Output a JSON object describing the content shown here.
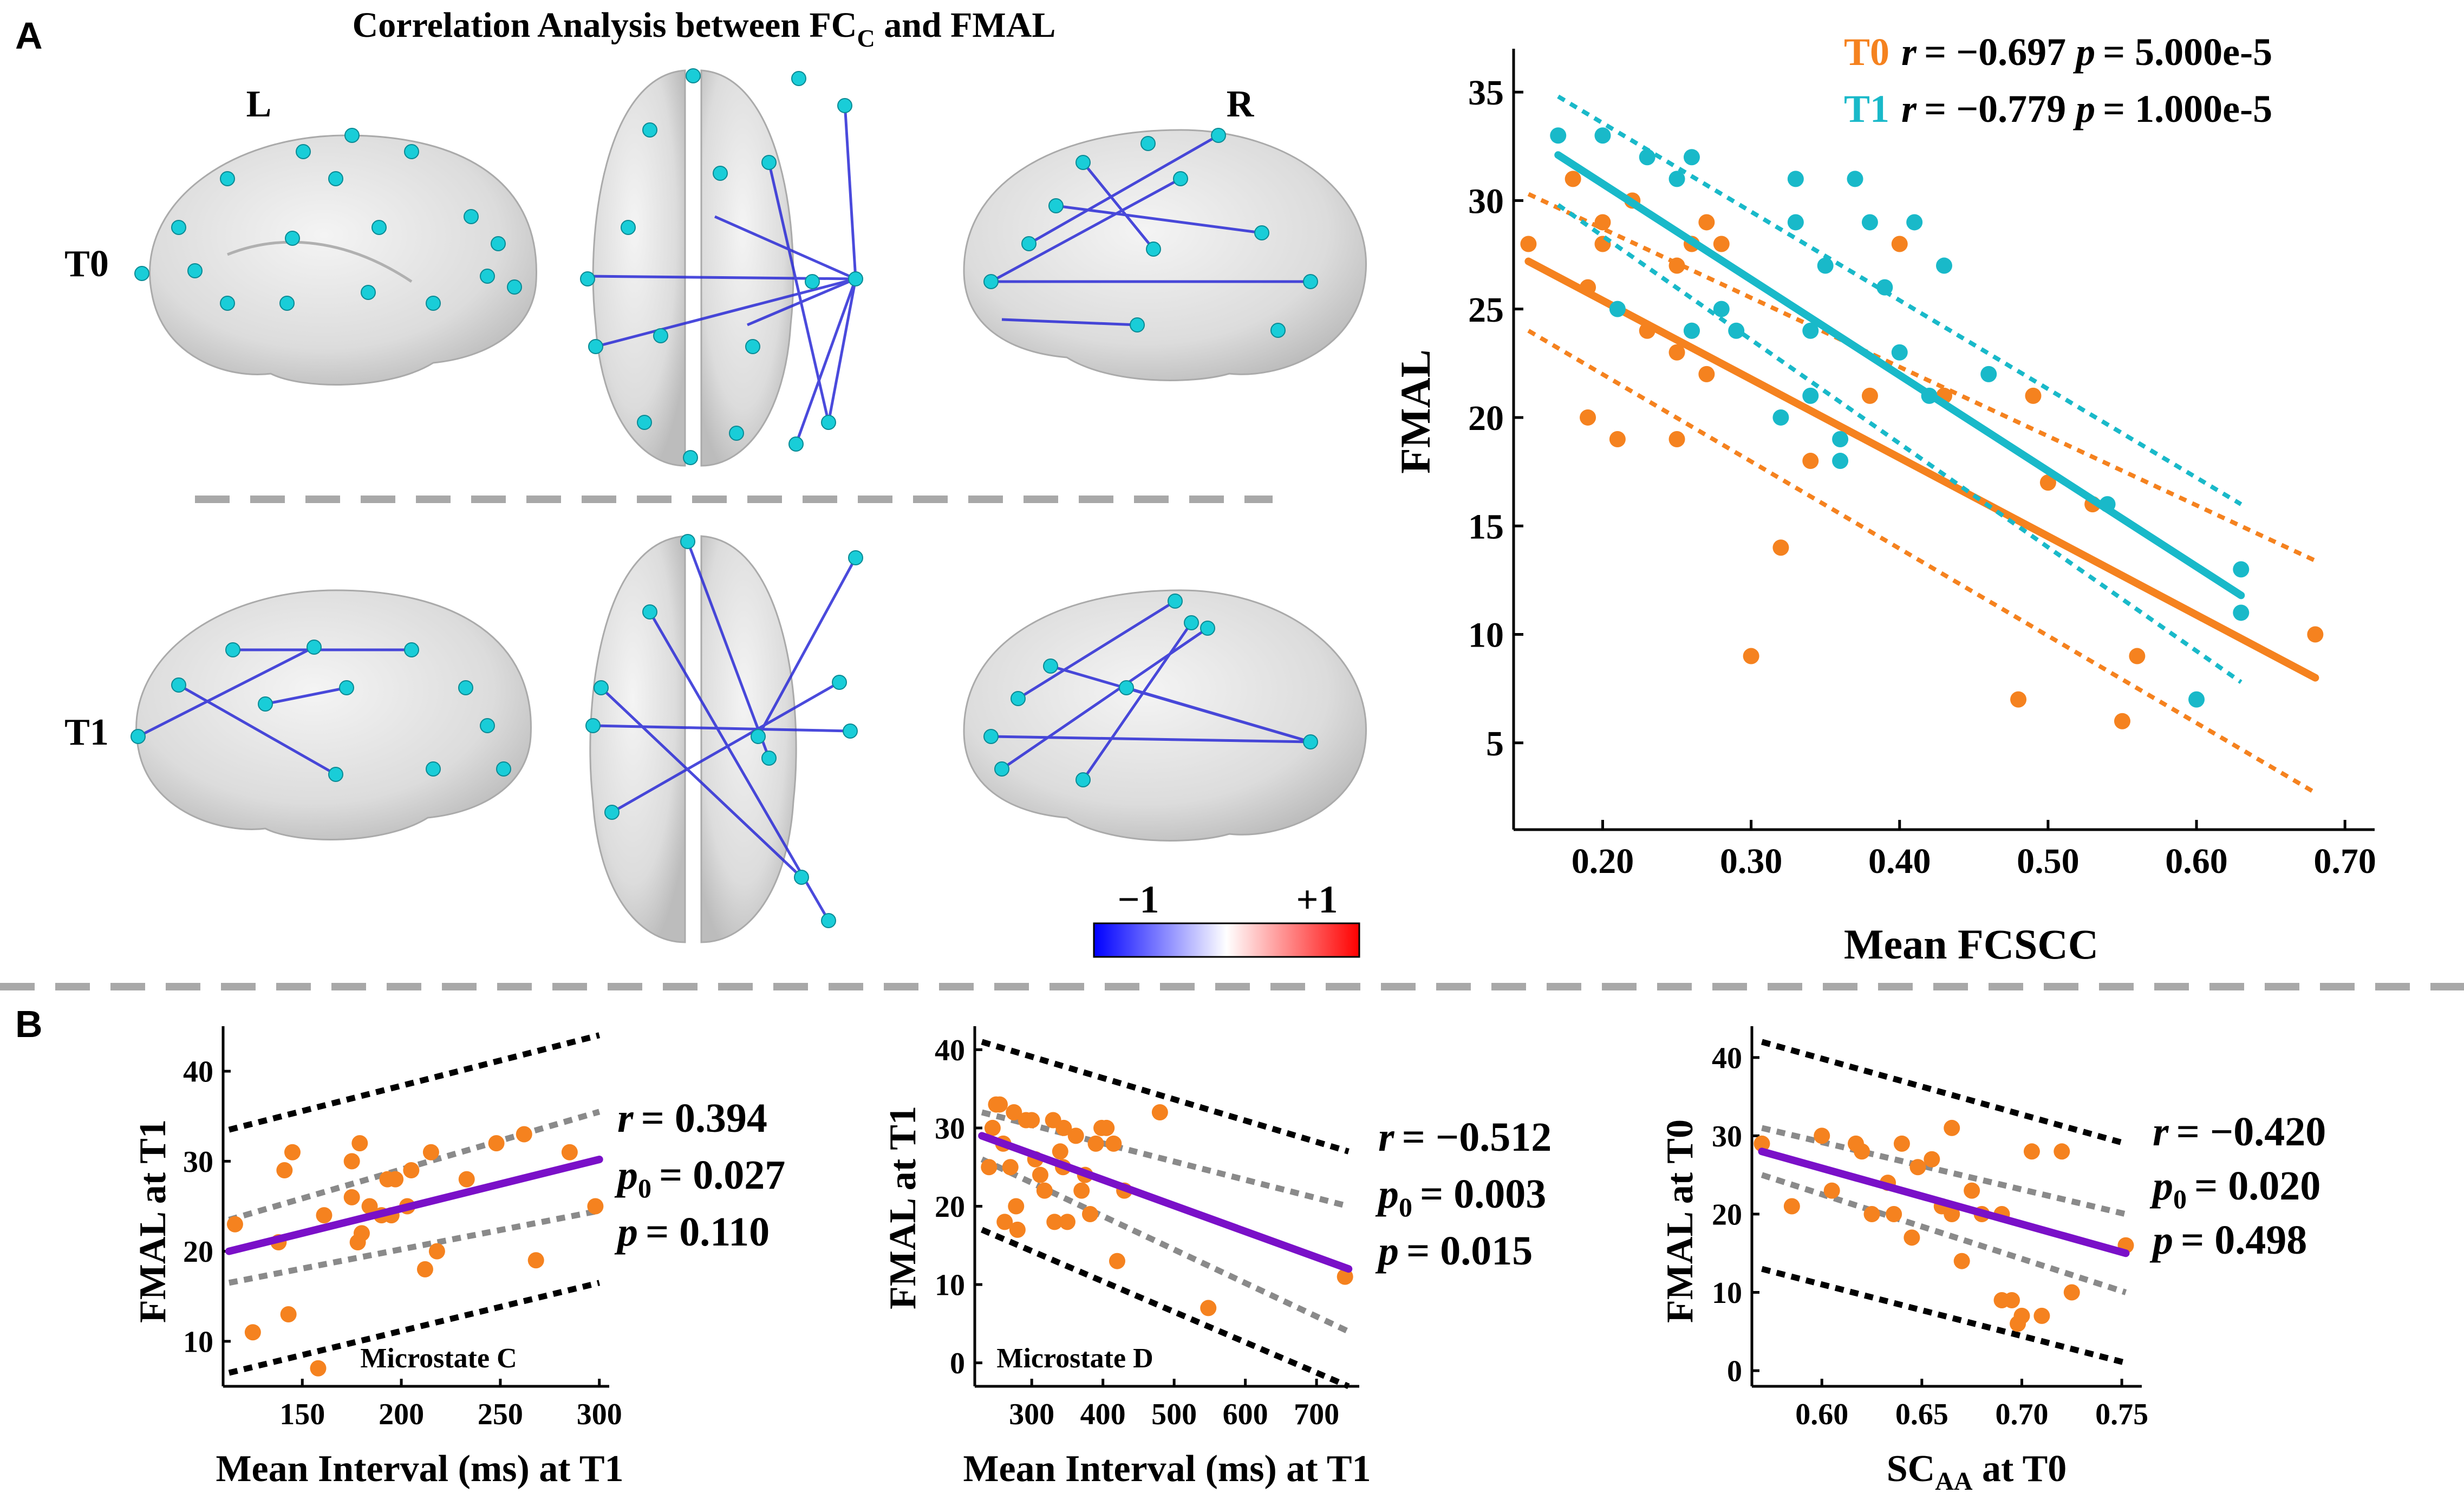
{
  "panel_a": {
    "label": "A",
    "title_main": "Correlation Analysis between FC",
    "title_sub": "C",
    "title_end": " and FMAL",
    "left_label": "L",
    "right_label": "R",
    "row_t0": "T0",
    "row_t1": "T1",
    "colorbar": {
      "min_label": "−1",
      "max_label": "+1",
      "colors": [
        "#0000ff",
        "#ffffff",
        "#ff0000"
      ]
    }
  },
  "panel_b_label": "B",
  "chart_data": [
    {
      "type": "scatter",
      "panel": "A-right",
      "title": "",
      "xlabel": "Mean FCSCC",
      "ylabel": "FMAL",
      "xlim": [
        0.14,
        0.72
      ],
      "ylim": [
        1,
        37
      ],
      "xticks": [
        0.2,
        0.3,
        0.4,
        0.5,
        0.6,
        0.7
      ],
      "xtick_labels": [
        "0.20",
        "0.30",
        "0.40",
        "0.50",
        "0.60",
        "0.70"
      ],
      "yticks": [
        5,
        10,
        15,
        20,
        25,
        30,
        35
      ],
      "ytick_labels": [
        "5",
        "10",
        "15",
        "20",
        "25",
        "30",
        "35"
      ],
      "series": [
        {
          "name": "T0",
          "color": "#f5821f",
          "stats": {
            "r_prefix": "r",
            "r": "= −0.697",
            "p_prefix": "p",
            "p": "= 5.000e-5"
          },
          "fit": {
            "x": [
              0.15,
              0.68
            ],
            "y": [
              27.2,
              8.0
            ]
          },
          "ci_upper": {
            "x": [
              0.15,
              0.68
            ],
            "y": [
              30.3,
              13.4
            ]
          },
          "ci_lower": {
            "x": [
              0.15,
              0.68
            ],
            "y": [
              24.0,
              2.7
            ]
          },
          "x": [
            0.15,
            0.18,
            0.19,
            0.19,
            0.2,
            0.2,
            0.21,
            0.22,
            0.23,
            0.25,
            0.25,
            0.25,
            0.26,
            0.26,
            0.27,
            0.27,
            0.28,
            0.3,
            0.32,
            0.34,
            0.38,
            0.4,
            0.43,
            0.48,
            0.49,
            0.5,
            0.53,
            0.55,
            0.56,
            0.68
          ],
          "y": [
            28,
            31,
            26,
            20,
            28,
            29,
            19,
            30,
            24,
            19,
            27,
            23,
            24,
            28,
            29,
            22,
            28,
            9,
            14,
            18,
            21,
            28,
            21,
            7,
            21,
            17,
            16,
            6,
            9,
            10
          ]
        },
        {
          "name": "T1",
          "color": "#19b9c9",
          "stats": {
            "r_prefix": "r",
            "r": "= −0.779",
            "p_prefix": "p",
            "p": "= 1.000e-5"
          },
          "fit": {
            "x": [
              0.17,
              0.63
            ],
            "y": [
              32.1,
              11.8
            ]
          },
          "ci_upper": {
            "x": [
              0.17,
              0.63
            ],
            "y": [
              34.8,
              16.0
            ]
          },
          "ci_lower": {
            "x": [
              0.17,
              0.63
            ],
            "y": [
              29.8,
              7.8
            ]
          },
          "x": [
            0.17,
            0.2,
            0.21,
            0.23,
            0.25,
            0.26,
            0.26,
            0.28,
            0.29,
            0.32,
            0.33,
            0.33,
            0.34,
            0.34,
            0.35,
            0.36,
            0.36,
            0.37,
            0.38,
            0.39,
            0.4,
            0.41,
            0.42,
            0.43,
            0.46,
            0.54,
            0.6,
            0.63,
            0.63
          ],
          "y": [
            33,
            33,
            25,
            32,
            31,
            32,
            24,
            25,
            24,
            20,
            29,
            31,
            24,
            21,
            27,
            19,
            18,
            31,
            29,
            26,
            23,
            29,
            21,
            27,
            22,
            16,
            7,
            13,
            11
          ]
        }
      ]
    },
    {
      "type": "scatter",
      "panel": "B-1",
      "annotation": "Microstate C",
      "xlabel": "Mean Interval (ms) at T1",
      "ylabel": "FMAL at T1",
      "xlim": [
        110,
        305
      ],
      "ylim": [
        5,
        45
      ],
      "xticks": [
        150,
        200,
        250,
        300
      ],
      "xtick_labels": [
        "150",
        "200",
        "250",
        "300"
      ],
      "yticks": [
        10,
        20,
        30,
        40
      ],
      "ytick_labels": [
        "10",
        "20",
        "30",
        "40"
      ],
      "stats": {
        "r_label": "r",
        "r": "= 0.394",
        "p0_label": "p",
        "p0_sub": "0",
        "p0": "= 0.027",
        "p_label": "p",
        "p": "= 0.110"
      },
      "point_color": "#f5821f",
      "fit_color": "#7a10c8",
      "fit": {
        "x": [
          113,
          300
        ],
        "y": [
          20,
          30.2
        ]
      },
      "ci_inner_upper": {
        "x": [
          113,
          300
        ],
        "y": [
          23.5,
          35.5
        ]
      },
      "ci_inner_lower": {
        "x": [
          113,
          300
        ],
        "y": [
          16.5,
          24.5
        ]
      },
      "ci_outer_upper": {
        "x": [
          113,
          300
        ],
        "y": [
          33.5,
          44
        ]
      },
      "ci_outer_lower": {
        "x": [
          113,
          300
        ],
        "y": [
          6.5,
          16.5
        ]
      },
      "x": [
        116,
        125,
        138,
        141,
        143,
        145,
        158,
        161,
        175,
        175,
        178,
        179,
        180,
        184,
        190,
        193,
        195,
        197,
        203,
        205,
        212,
        215,
        218,
        233,
        248,
        262,
        268,
        285,
        298
      ],
      "y": [
        23,
        11,
        21,
        29,
        13,
        31,
        7,
        24,
        30,
        26,
        21,
        32,
        22,
        25,
        24,
        28,
        24,
        28,
        25,
        29,
        18,
        31,
        20,
        28,
        32,
        33,
        19,
        31,
        25
      ]
    },
    {
      "type": "scatter",
      "panel": "B-2",
      "annotation": "Microstate D",
      "xlabel": "Mean Interval (ms) at T1",
      "ylabel": "FMAL at T1",
      "xlim": [
        220,
        760
      ],
      "ylim": [
        -3,
        43
      ],
      "xticks": [
        300,
        400,
        500,
        600,
        700
      ],
      "xtick_labels": [
        "300",
        "400",
        "500",
        "600",
        "700"
      ],
      "yticks": [
        0,
        10,
        20,
        30,
        40
      ],
      "ytick_labels": [
        "0",
        "10",
        "20",
        "30",
        "40"
      ],
      "stats": {
        "r_label": "r",
        "r": "= −0.512",
        "p0_label": "p",
        "p0_sub": "0",
        "p0": "= 0.003",
        "p_label": "p",
        "p": "= 0.015"
      },
      "point_color": "#f5821f",
      "fit_color": "#7a10c8",
      "fit": {
        "x": [
          230,
          745
        ],
        "y": [
          29,
          12
        ]
      },
      "ci_inner_upper": {
        "x": [
          230,
          745
        ],
        "y": [
          32,
          20
        ]
      },
      "ci_inner_lower": {
        "x": [
          230,
          745
        ],
        "y": [
          26,
          4
        ]
      },
      "ci_outer_upper": {
        "x": [
          230,
          745
        ],
        "y": [
          41,
          27
        ]
      },
      "ci_outer_lower": {
        "x": [
          230,
          745
        ],
        "y": [
          17,
          -3
        ]
      },
      "x": [
        240,
        245,
        250,
        255,
        260,
        262,
        270,
        275,
        278,
        280,
        292,
        300,
        305,
        312,
        318,
        330,
        332,
        340,
        344,
        345,
        350,
        362,
        370,
        375,
        382,
        390,
        398,
        405,
        415,
        420,
        430,
        480,
        548,
        740
      ],
      "y": [
        25,
        30,
        33,
        33,
        28,
        18,
        25,
        32,
        20,
        17,
        31,
        31,
        26,
        24,
        22,
        31,
        18,
        27,
        25,
        30,
        18,
        29,
        22,
        24,
        19,
        28,
        30,
        30,
        28,
        13,
        22,
        32,
        7,
        11
      ]
    },
    {
      "type": "scatter",
      "panel": "B-3",
      "xlabel_main": "SC",
      "xlabel_sub": "AA",
      "xlabel_end": " at T0",
      "ylabel": "FMAL at T0",
      "xlim": [
        0.565,
        0.76
      ],
      "ylim": [
        -2,
        44
      ],
      "xticks": [
        0.6,
        0.65,
        0.7,
        0.75
      ],
      "xtick_labels": [
        "0.60",
        "0.65",
        "0.70",
        "0.75"
      ],
      "yticks": [
        0,
        10,
        20,
        30,
        40
      ],
      "ytick_labels": [
        "0",
        "10",
        "20",
        "30",
        "40"
      ],
      "stats": {
        "r_label": "r",
        "r": "= −0.420",
        "p0_label": "p",
        "p0_sub": "0",
        "p0": "= 0.020",
        "p_label": "p",
        "p": "= 0.498"
      },
      "point_color": "#f5821f",
      "fit_color": "#7a10c8",
      "fit": {
        "x": [
          0.57,
          0.752
        ],
        "y": [
          28,
          15
        ]
      },
      "ci_inner_upper": {
        "x": [
          0.57,
          0.752
        ],
        "y": [
          31,
          20
        ]
      },
      "ci_inner_lower": {
        "x": [
          0.57,
          0.752
        ],
        "y": [
          25,
          10
        ]
      },
      "ci_outer_upper": {
        "x": [
          0.57,
          0.752
        ],
        "y": [
          42,
          29
        ]
      },
      "ci_outer_lower": {
        "x": [
          0.57,
          0.752
        ],
        "y": [
          13,
          1
        ]
      },
      "x": [
        0.57,
        0.585,
        0.6,
        0.605,
        0.617,
        0.62,
        0.625,
        0.633,
        0.636,
        0.64,
        0.645,
        0.648,
        0.655,
        0.66,
        0.665,
        0.665,
        0.67,
        0.675,
        0.68,
        0.69,
        0.69,
        0.695,
        0.698,
        0.7,
        0.705,
        0.71,
        0.72,
        0.725,
        0.752
      ],
      "y": [
        29,
        21,
        30,
        23,
        29,
        28,
        20,
        24,
        20,
        29,
        17,
        26,
        27,
        21,
        31,
        20,
        14,
        23,
        20,
        9,
        20,
        9,
        6,
        7,
        28,
        7,
        28,
        10,
        16
      ]
    }
  ]
}
